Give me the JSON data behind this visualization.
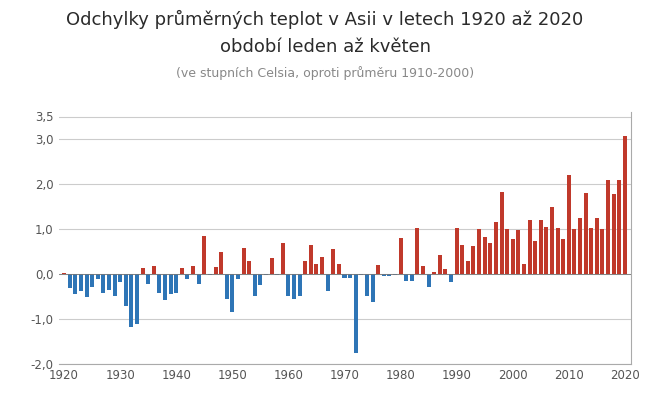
{
  "title_line1": "Odchylky průměrných teplot v Asii v letech 1920 až 2020",
  "title_line2": "období leden až květen",
  "subtitle": "(ve stupních Celsia, oproti průměru 1910-2000)",
  "years": [
    1920,
    1921,
    1922,
    1923,
    1924,
    1925,
    1926,
    1927,
    1928,
    1929,
    1930,
    1931,
    1932,
    1933,
    1934,
    1935,
    1936,
    1937,
    1938,
    1939,
    1940,
    1941,
    1942,
    1943,
    1944,
    1945,
    1946,
    1947,
    1948,
    1949,
    1950,
    1951,
    1952,
    1953,
    1954,
    1955,
    1956,
    1957,
    1958,
    1959,
    1960,
    1961,
    1962,
    1963,
    1964,
    1965,
    1966,
    1967,
    1968,
    1969,
    1970,
    1971,
    1972,
    1973,
    1974,
    1975,
    1976,
    1977,
    1978,
    1979,
    1980,
    1981,
    1982,
    1983,
    1984,
    1985,
    1986,
    1987,
    1988,
    1989,
    1990,
    1991,
    1992,
    1993,
    1994,
    1995,
    1996,
    1997,
    1998,
    1999,
    2000,
    2001,
    2002,
    2003,
    2004,
    2005,
    2006,
    2007,
    2008,
    2009,
    2010,
    2011,
    2012,
    2013,
    2014,
    2015,
    2016,
    2017,
    2018,
    2019,
    2020
  ],
  "values": [
    0.03,
    -0.32,
    -0.45,
    -0.38,
    -0.52,
    -0.28,
    -0.12,
    -0.42,
    -0.35,
    -0.48,
    -0.18,
    -0.72,
    -1.18,
    -1.12,
    0.13,
    -0.22,
    0.18,
    -0.42,
    -0.58,
    -0.45,
    -0.42,
    0.13,
    -0.1,
    0.17,
    -0.22,
    0.85,
    -0.02,
    0.16,
    0.5,
    -0.55,
    -0.85,
    -0.12,
    0.58,
    0.28,
    -0.48,
    -0.25,
    -0.02,
    0.35,
    -0.02,
    0.7,
    -0.48,
    -0.55,
    -0.48,
    0.3,
    0.65,
    0.23,
    0.38,
    -0.38,
    0.55,
    0.22,
    -0.08,
    -0.08,
    -1.75,
    -0.03,
    -0.48,
    -0.62,
    0.2,
    -0.05,
    -0.05,
    -0.03,
    0.8,
    -0.15,
    -0.15,
    1.02,
    0.18,
    -0.28,
    0.05,
    0.42,
    0.12,
    -0.18,
    1.02,
    0.65,
    0.28,
    0.62,
    1.0,
    0.82,
    0.68,
    1.15,
    1.82,
    1.0,
    0.78,
    0.98,
    0.22,
    1.2,
    0.73,
    1.2,
    1.05,
    1.5,
    1.03,
    0.78,
    2.2,
    1.0,
    1.25,
    1.8,
    1.02,
    1.25,
    1.0,
    2.08,
    1.78,
    2.1,
    3.07
  ],
  "color_positive": "#c0392b",
  "color_negative": "#2e75b6",
  "ylim": [
    -2.0,
    3.6
  ],
  "xlim": [
    1919,
    2021
  ],
  "xticks": [
    1920,
    1930,
    1940,
    1950,
    1960,
    1970,
    1980,
    1990,
    2000,
    2010,
    2020
  ],
  "ytick_positions": [
    -2.0,
    -1.0,
    0.0,
    1.0,
    2.0,
    3.0,
    3.5
  ],
  "ytick_labels": [
    "-2,0",
    "-1,0",
    "0,0",
    "1,0",
    "2,0",
    "3,0",
    "3,5"
  ],
  "grid_color": "#cccccc",
  "title_fontsize": 13,
  "subtitle_fontsize": 9,
  "spine_color": "#aaaaaa",
  "tick_color": "#555555"
}
